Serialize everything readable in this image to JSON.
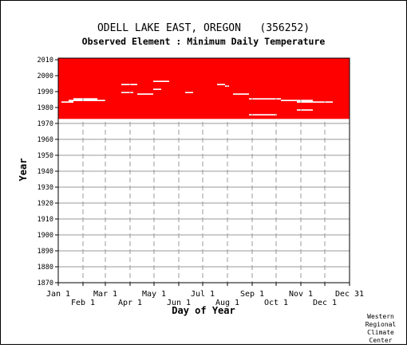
{
  "chart_data": {
    "type": "heatmap",
    "title": "ODELL LAKE EAST, OREGON   (356252)",
    "subtitle": "Observed Element : Minimum Daily Temperature",
    "xlabel": "Day of Year",
    "ylabel": "Year",
    "xlim": [
      1,
      366
    ],
    "ylim": [
      1870,
      2011
    ],
    "grid": true,
    "mark_color": "#ff0000",
    "y_ticks": [
      1870,
      1880,
      1890,
      1900,
      1910,
      1920,
      1930,
      1940,
      1950,
      1960,
      1970,
      1980,
      1990,
      2000,
      2010
    ],
    "x_ticks": [
      {
        "label": "Jan 1",
        "day": 1,
        "row": 1
      },
      {
        "label": "Feb 1",
        "day": 32,
        "row": 2
      },
      {
        "label": "Mar 1",
        "day": 60,
        "row": 1
      },
      {
        "label": "Apr 1",
        "day": 91,
        "row": 2
      },
      {
        "label": "May 1",
        "day": 121,
        "row": 1
      },
      {
        "label": "Jun 1",
        "day": 152,
        "row": 2
      },
      {
        "label": "Jul 1",
        "day": 182,
        "row": 1
      },
      {
        "label": "Aug 1",
        "day": 213,
        "row": 2
      },
      {
        "label": "Sep 1",
        "day": 244,
        "row": 1
      },
      {
        "label": "Oct 1",
        "day": 274,
        "row": 2
      },
      {
        "label": "Nov 1",
        "day": 305,
        "row": 1
      },
      {
        "label": "Dec 1",
        "day": 335,
        "row": 2
      },
      {
        "label": "Dec 31",
        "day": 366,
        "row": 1
      }
    ],
    "coverage": [
      {
        "year": 1973,
        "segments": [
          [
            1,
            366
          ]
        ]
      },
      {
        "year": 1974,
        "segments": [
          [
            1,
            366
          ]
        ]
      },
      {
        "year": 1975,
        "segments": [
          [
            1,
            240
          ],
          [
            275,
            366
          ]
        ]
      },
      {
        "year": 1976,
        "segments": [
          [
            1,
            366
          ]
        ]
      },
      {
        "year": 1977,
        "segments": [
          [
            1,
            366
          ]
        ]
      },
      {
        "year": 1978,
        "segments": [
          [
            1,
            300
          ],
          [
            320,
            366
          ]
        ]
      },
      {
        "year": 1979,
        "segments": [
          [
            1,
            366
          ]
        ]
      },
      {
        "year": 1980,
        "segments": [
          [
            1,
            366
          ]
        ]
      },
      {
        "year": 1981,
        "segments": [
          [
            1,
            366
          ]
        ]
      },
      {
        "year": 1982,
        "segments": [
          [
            1,
            366
          ]
        ]
      },
      {
        "year": 1983,
        "segments": [
          [
            1,
            5
          ],
          [
            20,
            300
          ],
          [
            345,
            366
          ]
        ]
      },
      {
        "year": 1984,
        "segments": [
          [
            1,
            14
          ],
          [
            60,
            280
          ],
          [
            320,
            366
          ]
        ]
      },
      {
        "year": 1985,
        "segments": [
          [
            1,
            20
          ],
          [
            50,
            240
          ],
          [
            280,
            366
          ]
        ]
      },
      {
        "year": 1986,
        "segments": [
          [
            1,
            366
          ]
        ]
      },
      {
        "year": 1987,
        "segments": [
          [
            1,
            366
          ]
        ]
      },
      {
        "year": 1988,
        "segments": [
          [
            1,
            100
          ],
          [
            120,
            220
          ],
          [
            240,
            366
          ]
        ]
      },
      {
        "year": 1989,
        "segments": [
          [
            1,
            80
          ],
          [
            95,
            160
          ],
          [
            170,
            366
          ]
        ]
      },
      {
        "year": 1990,
        "segments": [
          [
            1,
            366
          ]
        ]
      },
      {
        "year": 1991,
        "segments": [
          [
            1,
            120
          ],
          [
            130,
            366
          ]
        ]
      },
      {
        "year": 1992,
        "segments": [
          [
            1,
            366
          ]
        ]
      },
      {
        "year": 1993,
        "segments": [
          [
            1,
            210
          ],
          [
            215,
            366
          ]
        ]
      },
      {
        "year": 1994,
        "segments": [
          [
            1,
            80
          ],
          [
            100,
            200
          ],
          [
            210,
            366
          ]
        ]
      },
      {
        "year": 1995,
        "segments": [
          [
            1,
            366
          ]
        ]
      },
      {
        "year": 1996,
        "segments": [
          [
            1,
            120
          ],
          [
            140,
            366
          ]
        ]
      },
      {
        "year": 1997,
        "segments": [
          [
            1,
            366
          ]
        ]
      },
      {
        "year": 1998,
        "segments": [
          [
            1,
            366
          ]
        ]
      },
      {
        "year": 1999,
        "segments": [
          [
            1,
            366
          ]
        ]
      },
      {
        "year": 2000,
        "segments": [
          [
            1,
            366
          ]
        ]
      },
      {
        "year": 2001,
        "segments": [
          [
            1,
            366
          ]
        ]
      },
      {
        "year": 2002,
        "segments": [
          [
            1,
            366
          ]
        ]
      },
      {
        "year": 2003,
        "segments": [
          [
            1,
            366
          ]
        ]
      },
      {
        "year": 2004,
        "segments": [
          [
            1,
            366
          ]
        ]
      },
      {
        "year": 2005,
        "segments": [
          [
            1,
            366
          ]
        ]
      },
      {
        "year": 2006,
        "segments": [
          [
            1,
            366
          ]
        ]
      },
      {
        "year": 2007,
        "segments": [
          [
            1,
            366
          ]
        ]
      },
      {
        "year": 2008,
        "segments": [
          [
            1,
            366
          ]
        ]
      },
      {
        "year": 2009,
        "segments": [
          [
            1,
            366
          ]
        ]
      },
      {
        "year": 2010,
        "segments": [
          [
            1,
            366
          ]
        ]
      }
    ]
  },
  "credit": [
    "Western",
    "Regional",
    "Climate",
    "Center"
  ]
}
